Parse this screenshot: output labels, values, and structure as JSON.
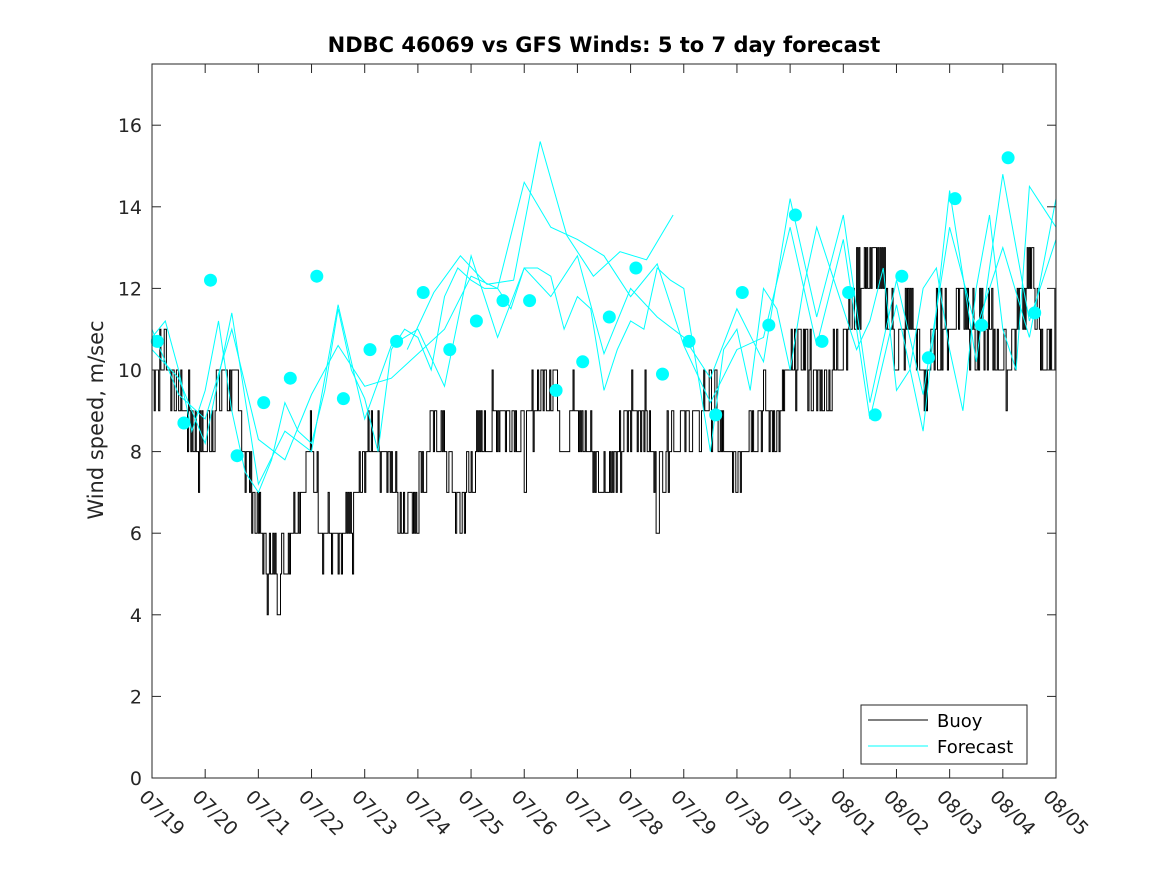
{
  "chart_data": {
    "type": "line",
    "title": "NDBC 46069 vs GFS Winds: 5 to 7 day forecast",
    "xlabel": "",
    "ylabel": "Wind speed, m/sec",
    "xlim": [
      0,
      17
    ],
    "ylim": [
      0,
      17.5
    ],
    "x_tick_labels": [
      "07/19",
      "07/20",
      "07/21",
      "07/22",
      "07/23",
      "07/24",
      "07/25",
      "07/26",
      "07/27",
      "07/28",
      "07/29",
      "07/30",
      "07/31",
      "08/01",
      "08/02",
      "08/03",
      "08/04",
      "08/05"
    ],
    "y_ticks": [
      0,
      2,
      4,
      6,
      8,
      10,
      12,
      14,
      16
    ],
    "grid": false,
    "legend": {
      "position": "bottom-right",
      "entries": [
        "Buoy",
        "Forecast"
      ]
    },
    "colors": {
      "buoy": "#000000",
      "forecast": "#00ffff",
      "markers": "#00ffff",
      "axes": "#262626"
    },
    "series": [
      {
        "name": "Buoy",
        "x": [
          0.0,
          0.25,
          0.5,
          0.75,
          1.0,
          1.25,
          1.5,
          1.75,
          2.0,
          2.25,
          2.5,
          2.75,
          3.0,
          3.25,
          3.5,
          3.75,
          4.0,
          4.25,
          4.5,
          4.75,
          5.0,
          5.25,
          5.5,
          5.75,
          6.0,
          6.25,
          6.5,
          6.75,
          7.0,
          7.25,
          7.5,
          7.75,
          8.0,
          8.25,
          8.5,
          8.75,
          9.0,
          9.25,
          9.5,
          9.75,
          10.0,
          10.25,
          10.5,
          10.75,
          11.0,
          11.25,
          11.5,
          11.75,
          12.0,
          12.25,
          12.5,
          12.75,
          13.0,
          13.25,
          13.5,
          13.75,
          14.0,
          14.25,
          14.5,
          14.75,
          15.0,
          15.25,
          15.5,
          15.75,
          16.0,
          16.25,
          16.5,
          16.75,
          17.0
        ],
        "y": [
          10,
          10.5,
          9.5,
          8.5,
          8,
          9.5,
          10,
          8,
          6,
          5,
          5.5,
          7,
          8,
          6,
          5.5,
          6,
          8,
          8.5,
          7.5,
          6.5,
          7,
          8.5,
          8,
          6.5,
          7.5,
          8.5,
          9,
          9,
          8,
          9.5,
          10,
          8.5,
          9,
          8,
          7.5,
          7.5,
          9,
          9,
          7,
          8.5,
          8.5,
          8.5,
          9.5,
          8,
          7.5,
          9,
          9,
          8.5,
          10,
          10.5,
          9.5,
          9.5,
          11,
          12,
          12.5,
          12,
          10.5,
          11.5,
          9.5,
          11,
          11,
          12,
          10.5,
          11,
          10,
          11,
          12.5,
          10,
          11
        ]
      },
      {
        "name": "Forecast",
        "x": [
          0.0,
          0.25,
          0.5,
          0.75,
          1.0,
          1.25,
          1.5,
          1.75,
          2.0,
          2.25,
          2.5,
          2.75,
          3.0,
          3.25,
          3.5,
          3.75,
          4.0,
          4.25,
          4.5,
          4.75,
          5.0,
          5.25,
          5.5,
          5.75,
          6.0,
          6.25,
          6.5,
          6.75,
          7.0,
          7.25,
          7.5,
          7.75,
          8.0,
          8.25,
          8.5,
          8.75,
          9.0,
          9.25,
          9.5,
          9.75,
          10.0,
          10.25,
          10.5,
          10.75,
          11.0,
          11.25,
          11.5,
          11.75,
          12.0,
          12.25,
          12.5,
          12.75,
          13.0,
          13.25,
          13.5,
          13.75,
          14.0,
          14.25,
          14.5,
          14.75,
          15.0,
          15.25,
          15.5,
          15.75,
          16.0,
          16.25,
          16.5,
          16.75,
          17.0
        ],
        "y": [
          10.8,
          11.2,
          10,
          8.5,
          9.5,
          11.2,
          9,
          7.5,
          7,
          7.8,
          9.2,
          8.5,
          8.2,
          9.5,
          11.5,
          10,
          9.3,
          8,
          10.5,
          11,
          10.8,
          10,
          11.8,
          12.5,
          12.2,
          12,
          12,
          11.5,
          12.5,
          12.5,
          12.3,
          11,
          11.8,
          11.5,
          9.5,
          10.5,
          11.2,
          11,
          12.5,
          12.2,
          12,
          10,
          8,
          10.5,
          11,
          9.5,
          12,
          11.5,
          10,
          12,
          13.5,
          12.5,
          11.5,
          10.5,
          11.2,
          12.5,
          9.5,
          10,
          12,
          12.5,
          10.5,
          9,
          12,
          13.8,
          11,
          10,
          14.5,
          14,
          13.5
        ],
        "extra_lines": [
          {
            "x": [
              0,
              0.5,
              1,
              1.5,
              2,
              2.5,
              3,
              3.5,
              4,
              4.5,
              5,
              5.5,
              6,
              6.5,
              7,
              7.5,
              8,
              8.5,
              9,
              9.5,
              10,
              10.5,
              11,
              11.5,
              12,
              12.5,
              13,
              13.5,
              14,
              14.5,
              15,
              15.5,
              16,
              16.5,
              17
            ],
            "y": [
              10.5,
              9.8,
              8.2,
              11.4,
              7.2,
              8.5,
              8,
              11.6,
              8.8,
              10.6,
              11,
              9.6,
              12.8,
              10.8,
              12.5,
              11.8,
              12.8,
              10.4,
              12,
              11.3,
              10.8,
              9.8,
              11.5,
              10.2,
              14.2,
              11.3,
              13.8,
              9.2,
              12.2,
              9.4,
              13.5,
              11,
              13,
              10.8,
              14.2
            ]
          },
          {
            "x": [
              0,
              0.5,
              1,
              1.5,
              2,
              2.5,
              3,
              3.5,
              4,
              4.5,
              5,
              5.5,
              6,
              6.5,
              7,
              7.5,
              8,
              8.5,
              9,
              9.5,
              10,
              10.5,
              11,
              11.5,
              12,
              12.5,
              13,
              13.5,
              14,
              14.5,
              15,
              15.5,
              16,
              16.5,
              17
            ],
            "y": [
              11,
              9.4,
              8.8,
              11,
              8.3,
              7.8,
              9.4,
              10.6,
              9.6,
              9.8,
              10.4,
              11,
              12.3,
              12,
              14.6,
              13.5,
              13.2,
              12.8,
              11.8,
              12.6,
              10.6,
              9.2,
              10.5,
              10.8,
              13.5,
              10.6,
              13.2,
              8.8,
              11.6,
              8.5,
              14.4,
              10.2,
              14.8,
              11.2,
              13.2
            ]
          },
          {
            "x": [
              4.8,
              5.3,
              5.8,
              6.3,
              6.8,
              7.3,
              7.8,
              8.3,
              8.8,
              9.3,
              9.8
            ],
            "y": [
              10.5,
              11.9,
              12.8,
              12.1,
              12.2,
              15.6,
              13.3,
              12.3,
              12.9,
              12.7,
              13.8
            ]
          }
        ]
      },
      {
        "name": "Markers",
        "x": [
          0.1,
          0.6,
          1.1,
          1.6,
          2.1,
          2.6,
          3.1,
          3.6,
          4.1,
          4.6,
          5.1,
          5.6,
          6.1,
          6.6,
          7.1,
          7.6,
          8.1,
          8.6,
          9.1,
          9.6,
          10.1,
          10.6,
          11.1,
          11.6,
          12.1,
          12.6,
          13.1,
          13.6,
          14.1,
          14.6,
          15.1,
          15.6,
          16.1,
          16.6
        ],
        "y": [
          10.7,
          8.7,
          12.2,
          7.9,
          9.2,
          9.8,
          12.3,
          9.3,
          10.5,
          10.7,
          11.9,
          10.5,
          11.2,
          11.7,
          11.7,
          9.5,
          10.2,
          11.3,
          12.5,
          9.9,
          10.7,
          8.9,
          11.9,
          11.1,
          13.8,
          10.7,
          11.9,
          8.9,
          12.3,
          10.3,
          14.2,
          11.1,
          15.2,
          11.4
        ]
      }
    ]
  }
}
